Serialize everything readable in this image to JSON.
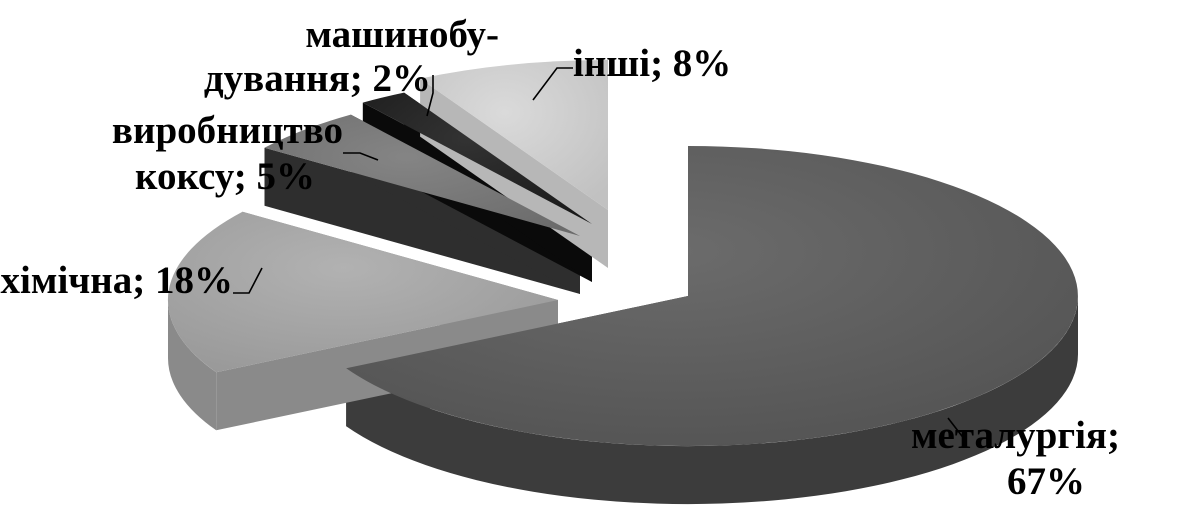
{
  "chart_data": {
    "type": "pie",
    "style": "3d-exploded",
    "legend": "none",
    "labels_shown": "category; percent",
    "slices": [
      {
        "category": "металургія",
        "value": 67,
        "color": "#5b5b5b",
        "side": "#3c3c3c",
        "label_lines": [
          "металургія;",
          "67%"
        ]
      },
      {
        "category": "хімічна",
        "value": 18,
        "color": "#a9a9a9",
        "side": "#8a8a8a",
        "label_lines": [
          "хімічна; 18%"
        ]
      },
      {
        "category": "виробництво коксу",
        "value": 5,
        "color": "#777777",
        "side": "#2e2e2e",
        "label_lines": [
          "виробництво",
          "коксу; 5%"
        ]
      },
      {
        "category": "машинобудування",
        "value": 2,
        "color": "#1c1c1c",
        "side": "#0a0a0a",
        "label_lines": [
          "машинобу-",
          "дування; 2%"
        ]
      },
      {
        "category": "інші",
        "value": 8,
        "color": "#d6d6d6",
        "side": "#b7b7b7",
        "label_lines": [
          "інші; 8%"
        ]
      }
    ]
  }
}
